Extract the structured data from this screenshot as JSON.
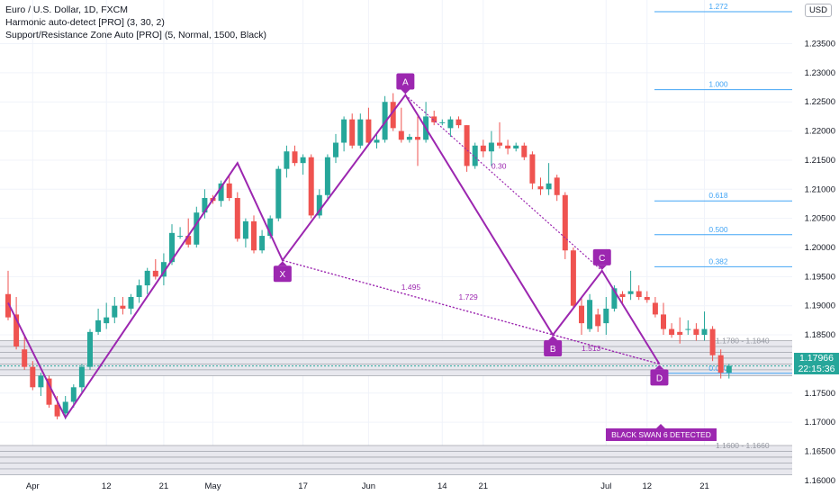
{
  "legend": {
    "symbol": "Euro / U.S. Dollar, 1D, FXCM",
    "indicator1": "Harmonic auto-detect [PRO] (3, 30, 2)",
    "indicator2": "Support/Resistance Zone Auto [PRO] (5, Normal, 1500, Black)"
  },
  "currency": "USD",
  "last_price": {
    "price": "1.17966",
    "countdown": "22:15:36"
  },
  "alert": "BLACK SWAN 6 DETECTED",
  "colors": {
    "up": "#26a69a",
    "down": "#ef5350",
    "pattern": "#9c27b0",
    "fib": "#42a5f5",
    "grid": "#f0f3fa"
  },
  "chart_data": {
    "type": "candlestick",
    "y_axis": {
      "range": [
        1.1575,
        1.2425
      ],
      "ticks": [
        "1.23500",
        "1.23000",
        "1.22500",
        "1.22000",
        "1.21500",
        "1.21000",
        "1.20500",
        "1.20000",
        "1.19500",
        "1.19000",
        "1.18500",
        "1.17500",
        "1.17000",
        "1.16500",
        "1.16000"
      ]
    },
    "x_axis": {
      "ticks": [
        {
          "label": "Apr",
          "i": 3
        },
        {
          "label": "12",
          "i": 12
        },
        {
          "label": "21",
          "i": 19
        },
        {
          "label": "May",
          "i": 25
        },
        {
          "label": "17",
          "i": 36
        },
        {
          "label": "Jun",
          "i": 44
        },
        {
          "label": "14",
          "i": 53
        },
        {
          "label": "21",
          "i": 58
        },
        {
          "label": "Jul",
          "i": 73
        },
        {
          "label": "12",
          "i": 78
        },
        {
          "label": "21",
          "i": 85
        }
      ]
    },
    "candles": [
      [
        1.192,
        1.196,
        1.1875,
        1.188
      ],
      [
        1.1885,
        1.1915,
        1.1825,
        1.183
      ],
      [
        1.1825,
        1.185,
        1.179,
        1.1795
      ],
      [
        1.1795,
        1.1805,
        1.1755,
        1.176
      ],
      [
        1.176,
        1.1785,
        1.1745,
        1.178
      ],
      [
        1.1775,
        1.178,
        1.1725,
        1.173
      ],
      [
        1.173,
        1.1745,
        1.1705,
        1.171
      ],
      [
        1.1715,
        1.1745,
        1.1705,
        1.1735
      ],
      [
        1.1735,
        1.1765,
        1.1725,
        1.176
      ],
      [
        1.176,
        1.18,
        1.175,
        1.1795
      ],
      [
        1.1795,
        1.186,
        1.179,
        1.1855
      ],
      [
        1.1855,
        1.1895,
        1.185,
        1.1875
      ],
      [
        1.187,
        1.1905,
        1.186,
        1.188
      ],
      [
        1.188,
        1.1915,
        1.187,
        1.19
      ],
      [
        1.19,
        1.1915,
        1.1885,
        1.1895
      ],
      [
        1.1895,
        1.192,
        1.1885,
        1.1915
      ],
      [
        1.1915,
        1.1945,
        1.1905,
        1.1935
      ],
      [
        1.1935,
        1.1965,
        1.192,
        1.196
      ],
      [
        1.196,
        1.198,
        1.1945,
        1.195
      ],
      [
        1.195,
        1.199,
        1.1935,
        1.1975
      ],
      [
        1.1975,
        1.204,
        1.197,
        1.2025
      ],
      [
        1.202,
        1.2035,
        1.2015,
        1.202
      ],
      [
        1.202,
        1.205,
        1.2,
        1.2005
      ],
      [
        1.2005,
        1.207,
        1.2,
        1.206
      ],
      [
        1.206,
        1.21,
        1.205,
        1.2085
      ],
      [
        1.2085,
        1.209,
        1.2075,
        1.208
      ],
      [
        1.208,
        1.2115,
        1.207,
        1.211
      ],
      [
        1.211,
        1.2125,
        1.208,
        1.2085
      ],
      [
        1.2085,
        1.2095,
        1.201,
        1.2015
      ],
      [
        1.2015,
        1.205,
        1.2,
        1.2045
      ],
      [
        1.2045,
        1.2055,
        1.199,
        1.1995
      ],
      [
        1.1995,
        1.203,
        1.199,
        1.202
      ],
      [
        1.202,
        1.2055,
        1.2015,
        1.205
      ],
      [
        1.205,
        1.214,
        1.2045,
        1.2135
      ],
      [
        1.2135,
        1.2175,
        1.212,
        1.2165
      ],
      [
        1.2165,
        1.2175,
        1.214,
        1.2145
      ],
      [
        1.2145,
        1.216,
        1.2125,
        1.2155
      ],
      [
        1.2155,
        1.216,
        1.205,
        1.2055
      ],
      [
        1.2055,
        1.21,
        1.205,
        1.209
      ],
      [
        1.209,
        1.216,
        1.208,
        1.2155
      ],
      [
        1.2155,
        1.2195,
        1.2145,
        1.218
      ],
      [
        1.218,
        1.2225,
        1.2165,
        1.222
      ],
      [
        1.222,
        1.223,
        1.217,
        1.2175
      ],
      [
        1.2175,
        1.223,
        1.217,
        1.222
      ],
      [
        1.222,
        1.224,
        1.2175,
        1.218
      ],
      [
        1.218,
        1.2195,
        1.217,
        1.2185
      ],
      [
        1.2185,
        1.226,
        1.218,
        1.225
      ],
      [
        1.225,
        1.2265,
        1.22,
        1.2205
      ],
      [
        1.22,
        1.224,
        1.218,
        1.2185
      ],
      [
        1.2185,
        1.2195,
        1.218,
        1.219
      ],
      [
        1.219,
        1.2225,
        1.214,
        1.2185
      ],
      [
        1.2185,
        1.225,
        1.218,
        1.2225
      ],
      [
        1.2225,
        1.2235,
        1.221,
        1.2215
      ],
      [
        1.2215,
        1.222,
        1.221,
        1.2215
      ],
      [
        1.2205,
        1.2225,
        1.219,
        1.222
      ],
      [
        1.222,
        1.2225,
        1.2205,
        1.221
      ],
      [
        1.221,
        1.221,
        1.213,
        1.214
      ],
      [
        1.214,
        1.218,
        1.2135,
        1.2175
      ],
      [
        1.2175,
        1.2185,
        1.2155,
        1.2165
      ],
      [
        1.2165,
        1.22,
        1.214,
        1.218
      ],
      [
        1.218,
        1.2215,
        1.217,
        1.2175
      ],
      [
        1.2175,
        1.2185,
        1.216,
        1.217
      ],
      [
        1.217,
        1.218,
        1.2165,
        1.2175
      ],
      [
        1.2175,
        1.218,
        1.215,
        1.2155
      ],
      [
        1.216,
        1.2165,
        1.21,
        1.211
      ],
      [
        1.2105,
        1.212,
        1.209,
        1.21
      ],
      [
        1.21,
        1.2145,
        1.209,
        1.211
      ],
      [
        1.212,
        1.2125,
        1.208,
        1.209
      ],
      [
        1.209,
        1.2095,
        1.198,
        1.1995
      ],
      [
        1.1995,
        1.2,
        1.1895,
        1.19
      ],
      [
        1.19,
        1.1915,
        1.185,
        1.187
      ],
      [
        1.186,
        1.192,
        1.1855,
        1.191
      ],
      [
        1.1885,
        1.1895,
        1.1855,
        1.1865
      ],
      [
        1.187,
        1.1915,
        1.185,
        1.1895
      ],
      [
        1.1895,
        1.1935,
        1.189,
        1.193
      ],
      [
        1.192,
        1.1925,
        1.1905,
        1.1915
      ],
      [
        1.192,
        1.196,
        1.191,
        1.1925
      ],
      [
        1.1925,
        1.1935,
        1.191,
        1.1915
      ],
      [
        1.1915,
        1.1925,
        1.1905,
        1.191
      ],
      [
        1.1905,
        1.1915,
        1.188,
        1.1885
      ],
      [
        1.1885,
        1.1905,
        1.185,
        1.186
      ],
      [
        1.186,
        1.187,
        1.1845,
        1.185
      ],
      [
        1.1855,
        1.188,
        1.1835,
        1.185
      ],
      [
        1.186,
        1.1875,
        1.185,
        1.186
      ],
      [
        1.186,
        1.187,
        1.184,
        1.185
      ],
      [
        1.185,
        1.189,
        1.184,
        1.186
      ],
      [
        1.186,
        1.1865,
        1.1805,
        1.1815
      ],
      [
        1.1815,
        1.1825,
        1.1775,
        1.1785
      ],
      [
        1.1785,
        1.18,
        1.1775,
        1.1797
      ]
    ],
    "pattern": {
      "name": "BLACK SWAN 6",
      "points": [
        {
          "label": "X",
          "i": 33.5,
          "price": 1.1978
        },
        {
          "label": "A",
          "i": 48.5,
          "price": 1.2262
        },
        {
          "label": "B",
          "i": 66.5,
          "price": 1.185
        },
        {
          "label": "C",
          "i": 72.5,
          "price": 1.196
        },
        {
          "label": "D",
          "i": 79.5,
          "price": 1.18
        }
      ],
      "extra_left": [
        {
          "i": 0,
          "price": 1.1905
        },
        {
          "i": 7,
          "price": 1.1708
        },
        {
          "i": 28,
          "price": 1.2145
        }
      ],
      "ratios": [
        {
          "text": "0.30",
          "i": 59,
          "price": 1.2135
        },
        {
          "text": "1.495",
          "i": 48,
          "price": 1.1927
        },
        {
          "text": "1.729",
          "i": 55,
          "price": 1.191
        },
        {
          "text": "1.513",
          "i": 70,
          "price": 1.1822
        }
      ]
    },
    "fib_levels": [
      {
        "label": "1.272",
        "price": 1.2405
      },
      {
        "label": "1.000",
        "price": 1.2271
      },
      {
        "label": "0.618",
        "price": 1.208
      },
      {
        "label": "0.500",
        "price": 1.2022
      },
      {
        "label": "0.382",
        "price": 1.1967
      },
      {
        "label": "0.000",
        "price": 1.1784
      }
    ],
    "zones": [
      {
        "label": "1.1780 - 1.1840",
        "low": 1.178,
        "high": 1.184
      },
      {
        "label": "1.1600 - 1.1660",
        "low": 1.16,
        "high": 1.166
      }
    ]
  }
}
